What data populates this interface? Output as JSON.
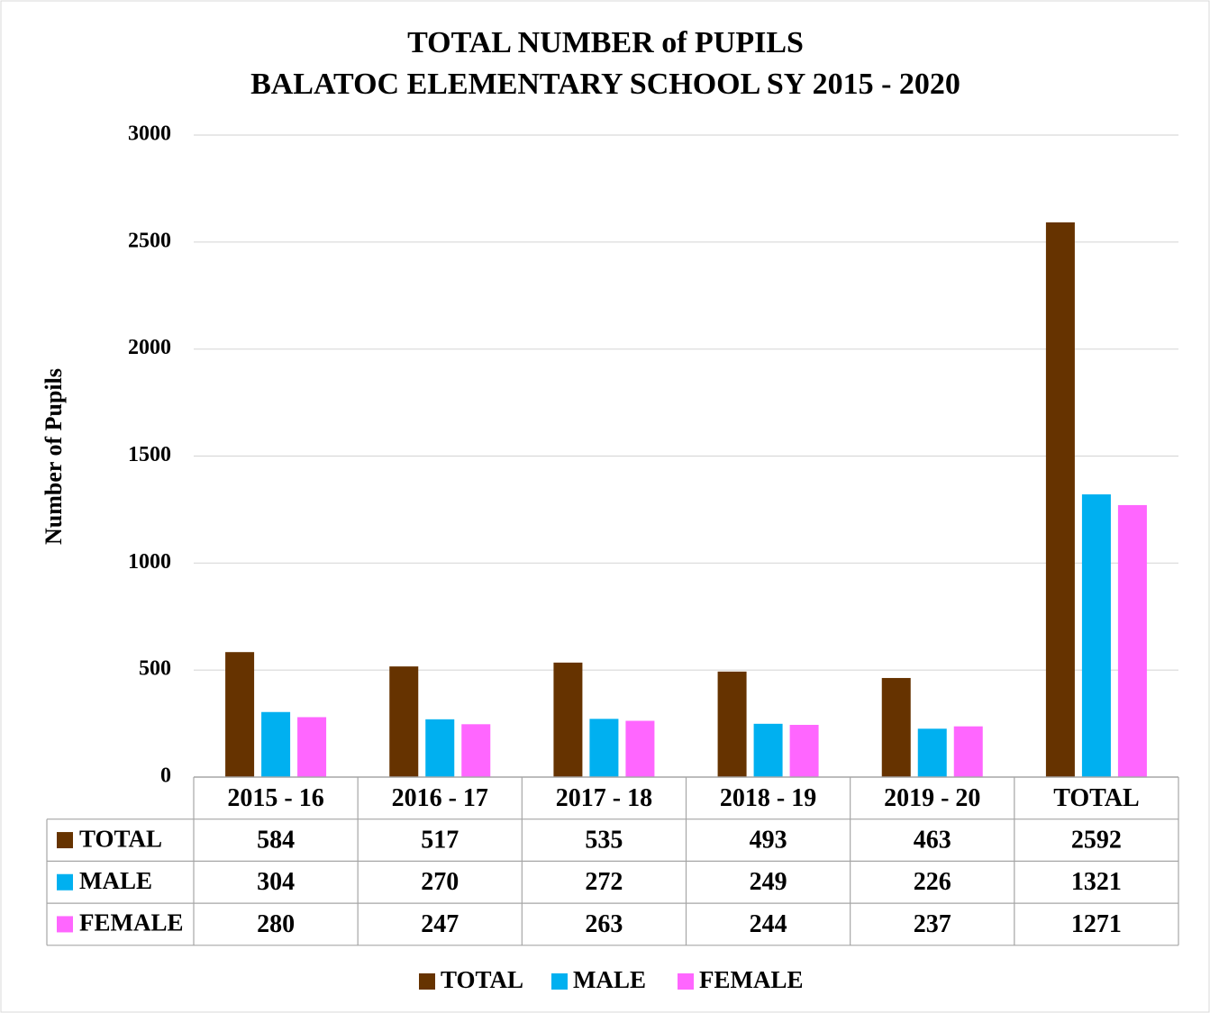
{
  "chart_data": {
    "type": "bar",
    "title": "TOTAL NUMBER of PUPILS",
    "subtitle": "BALATOC ELEMENTARY SCHOOL SY 2015 - 2020",
    "y_label": "Number of Pupils",
    "categories": [
      "2015 - 16",
      "2016 - 17",
      "2017 - 18",
      "2018 - 19",
      "2019 - 20",
      "TOTAL"
    ],
    "series": [
      {
        "name": "TOTAL",
        "color": "#663300",
        "values": [
          584,
          517,
          535,
          493,
          463,
          2592
        ]
      },
      {
        "name": "MALE",
        "color": "#00b0f0",
        "values": [
          304,
          270,
          272,
          249,
          226,
          1321
        ]
      },
      {
        "name": "FEMALE",
        "color": "#ff66ff",
        "values": [
          280,
          247,
          263,
          244,
          237,
          1271
        ]
      }
    ],
    "ylim": [
      0,
      3000
    ],
    "yticks": [
      0,
      500,
      1000,
      1500,
      2000,
      2500,
      3000
    ],
    "grid": true,
    "legend": "bottom"
  }
}
